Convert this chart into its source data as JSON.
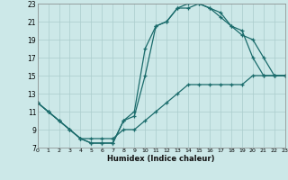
{
  "xlabel": "Humidex (Indice chaleur)",
  "bg_color": "#cce8e8",
  "grid_color": "#aacccc",
  "line_color": "#1a6b6b",
  "xlim": [
    0,
    23
  ],
  "ylim": [
    7,
    23
  ],
  "xticks": [
    0,
    1,
    2,
    3,
    4,
    5,
    6,
    7,
    8,
    9,
    10,
    11,
    12,
    13,
    14,
    15,
    16,
    17,
    18,
    19,
    20,
    21,
    22,
    23
  ],
  "yticks": [
    7,
    9,
    11,
    13,
    15,
    17,
    19,
    21,
    23
  ],
  "line1_x": [
    0,
    1,
    2,
    3,
    4,
    5,
    6,
    7,
    8,
    9,
    10,
    11,
    12,
    13,
    14,
    15,
    16,
    17,
    18,
    19,
    20,
    21,
    22,
    23
  ],
  "line1_y": [
    12,
    11,
    10,
    9,
    8,
    7.5,
    7.5,
    7.5,
    10,
    11,
    18,
    20.5,
    21,
    22.5,
    23,
    23,
    22.5,
    21.5,
    20.5,
    20,
    17,
    15,
    15,
    15
  ],
  "line2_x": [
    0,
    1,
    2,
    3,
    4,
    5,
    6,
    7,
    8,
    9,
    10,
    11,
    12,
    13,
    14,
    15,
    16,
    17,
    18,
    19,
    20,
    21,
    22,
    23
  ],
  "line2_y": [
    12,
    11,
    10,
    9,
    8,
    7.5,
    7.5,
    7.5,
    10,
    10.5,
    15,
    20.5,
    21,
    22.5,
    22.5,
    23,
    22.5,
    22,
    20.5,
    19.5,
    19,
    17,
    15,
    15
  ],
  "line3_x": [
    0,
    1,
    2,
    3,
    4,
    5,
    6,
    7,
    8,
    9,
    10,
    11,
    12,
    13,
    14,
    15,
    16,
    17,
    18,
    19,
    20,
    21,
    22,
    23
  ],
  "line3_y": [
    12,
    11,
    10,
    9,
    8,
    8,
    8,
    8,
    9,
    9,
    10,
    11,
    12,
    13,
    14,
    14,
    14,
    14,
    14,
    14,
    15,
    15,
    15,
    15
  ]
}
